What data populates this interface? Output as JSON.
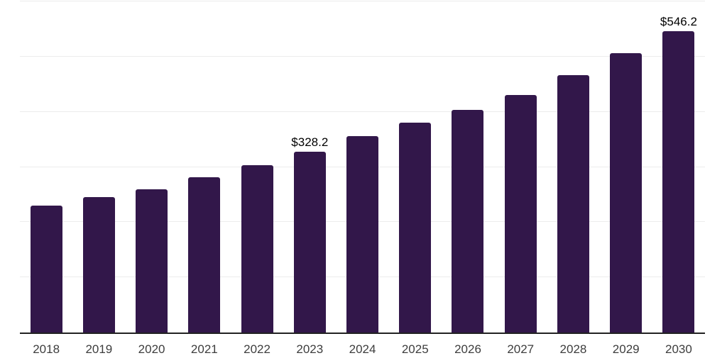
{
  "chart_data": {
    "type": "bar",
    "title": "",
    "xlabel": "",
    "ylabel": "",
    "categories": [
      "2018",
      "2019",
      "2020",
      "2021",
      "2022",
      "2023",
      "2024",
      "2025",
      "2026",
      "2027",
      "2028",
      "2029",
      "2030"
    ],
    "values": [
      229.8,
      244.9,
      259.0,
      281.9,
      303.9,
      328.2,
      356.1,
      379.9,
      402.9,
      430.8,
      466.6,
      506.1,
      546.2
    ],
    "value_labels": {
      "2023": "$328.2",
      "2030": "$546.2"
    },
    "ylim": [
      0,
      600
    ],
    "gridline_values": [
      100,
      200,
      300,
      400,
      500,
      600
    ],
    "grid": "horizontal",
    "legend_position": "none",
    "colors": {
      "bar": "#32174a",
      "gridline": "#ececec",
      "axis_line": "#222222",
      "tick_label": "#3d3d3d",
      "value_label": "#000000",
      "background": "#ffffff"
    }
  }
}
